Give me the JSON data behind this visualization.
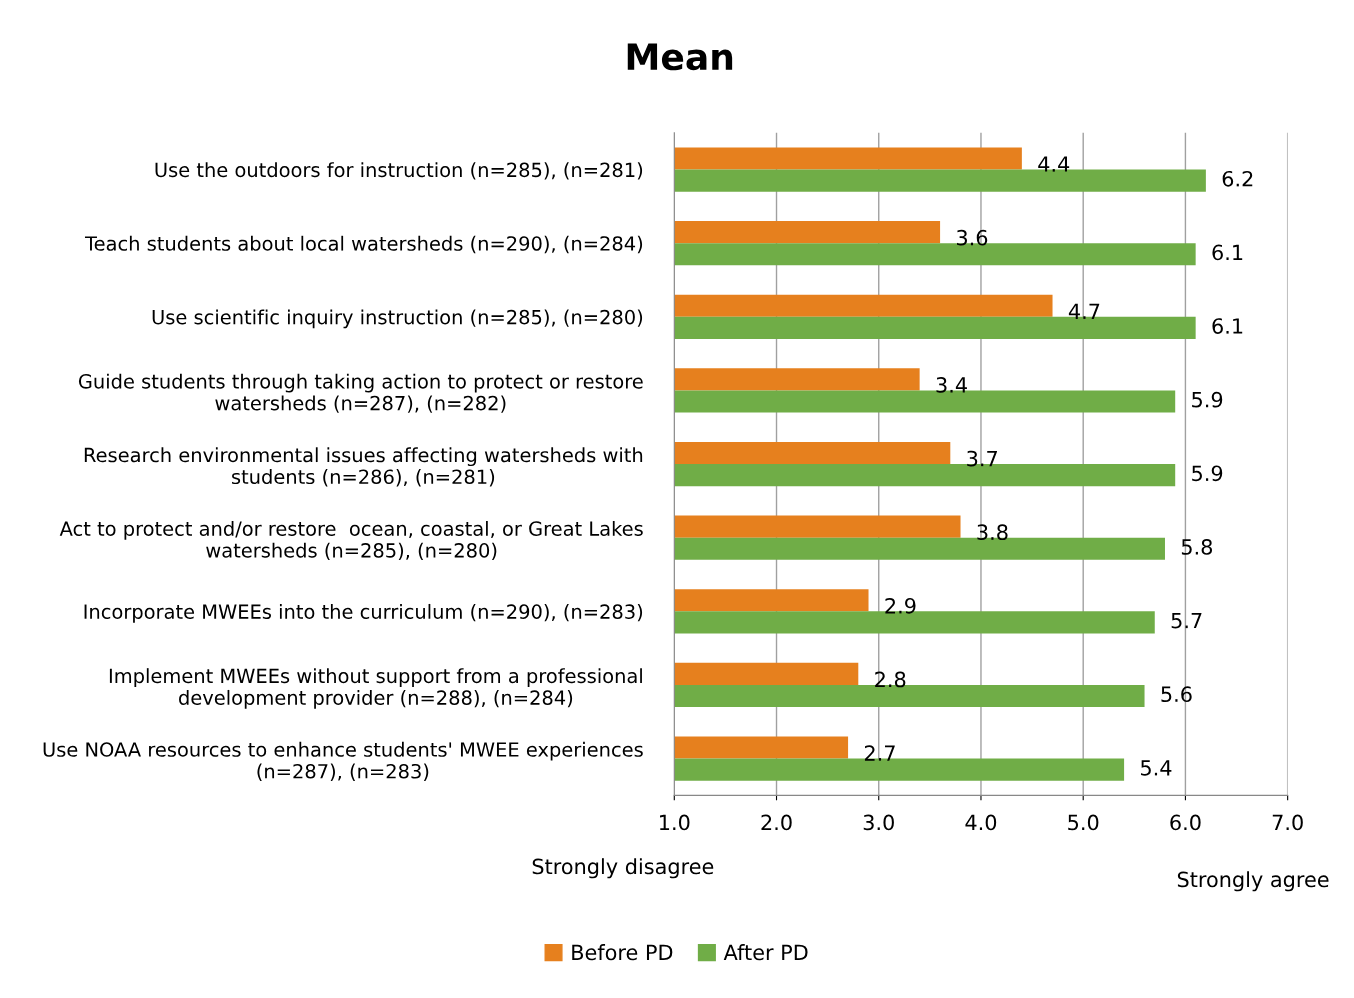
{
  "chart_data": {
    "type": "bar",
    "orientation": "horizontal",
    "title": "Mean",
    "categories": [
      "Use the outdoors for instruction (n=285), (n=281)",
      "Teach students about local watersheds (n=290), (n=284)",
      "Use scientific inquiry instruction (n=285), (n=280)",
      "Guide students through taking action to protect or restore\nwatersheds (n=287), (n=282)",
      "Research environmental issues affecting watersheds with\nstudents (n=286), (n=281)",
      "Act to protect and/or restore  ocean, coastal, or Great Lakes\nwatersheds (n=285), (n=280)",
      "Incorporate MWEEs into the curriculum (n=290), (n=283)",
      "Implement MWEEs without support from a professional\ndevelopment provider (n=288), (n=284)",
      "Use NOAA resources to enhance students' MWEE experiences\n(n=287), (n=283)"
    ],
    "series": [
      {
        "name": "Before PD",
        "color": "#e6801e",
        "values": [
          4.4,
          3.6,
          4.7,
          3.4,
          3.7,
          3.8,
          2.9,
          2.8,
          2.7
        ]
      },
      {
        "name": "After PD",
        "color": "#70ad47",
        "values": [
          6.2,
          6.1,
          6.1,
          5.9,
          5.9,
          5.8,
          5.7,
          5.6,
          5.4
        ]
      }
    ],
    "xlim": [
      1,
      7
    ],
    "xticks": [
      {
        "value": 1,
        "label": "1.0"
      },
      {
        "value": 2,
        "label": "2.0"
      },
      {
        "value": 3,
        "label": "3.0"
      },
      {
        "value": 4,
        "label": "4.0"
      },
      {
        "value": 5,
        "label": "5.0"
      },
      {
        "value": 6,
        "label": "6.0"
      },
      {
        "value": 7,
        "label": "7.0"
      }
    ],
    "annotations": [
      "Strongly disagree",
      "Strongly agree"
    ],
    "data_labels": true,
    "grid": "x",
    "legend": "bottom"
  }
}
